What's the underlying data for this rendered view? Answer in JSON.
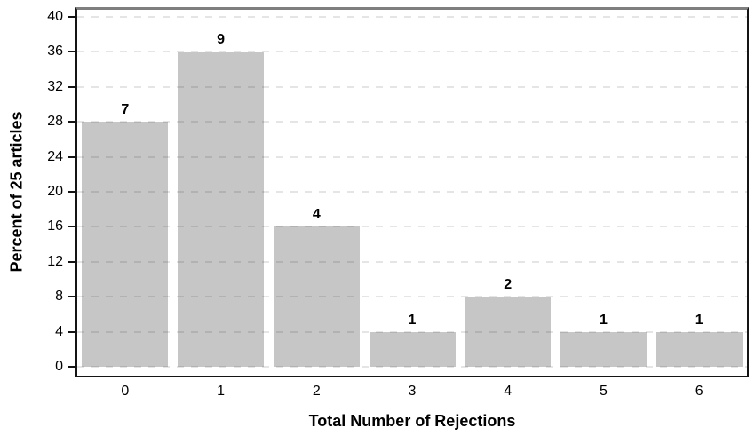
{
  "chart_data": {
    "type": "bar",
    "title": "",
    "categories": [
      "0",
      "1",
      "2",
      "3",
      "4",
      "5",
      "6"
    ],
    "values": [
      28,
      36,
      16,
      4,
      8,
      4,
      4
    ],
    "bar_value_labels": [
      "7",
      "9",
      "4",
      "1",
      "2",
      "1",
      "1"
    ],
    "xlabel": "Total Number of Rejections",
    "ylabel": "Percent of 25 articles",
    "ylim": [
      0,
      40
    ],
    "yticks": [
      0,
      4,
      8,
      12,
      16,
      20,
      24,
      28,
      32,
      36,
      40
    ],
    "grid": "horizontal-dashed",
    "legend": "none",
    "colors": {
      "bar_fill": "#c6c6c6",
      "plot_background": "#ffffff",
      "page_background": "#ffffff",
      "frame_top": "#7f7f7f",
      "axis_line": "#141414",
      "gridline": "rgba(0,0,0,0.10)",
      "text": "#000000"
    }
  }
}
